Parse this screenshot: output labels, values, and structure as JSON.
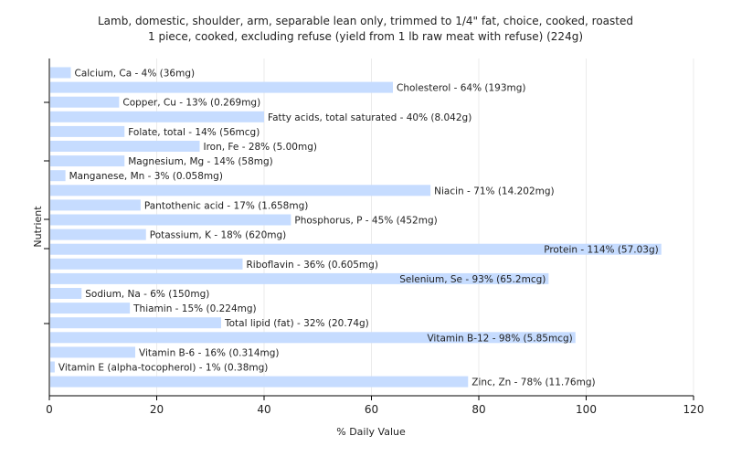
{
  "chart_data": {
    "type": "bar",
    "orientation": "horizontal",
    "title": "Lamb, domestic, shoulder, arm, separable lean only, trimmed to 1/4\" fat, choice, cooked, roasted",
    "subtitle": "1 piece, cooked, excluding refuse (yield from 1 lb raw meat with refuse) (224g)",
    "xlabel": "% Daily Value",
    "ylabel": "Nutrient",
    "xlim": [
      0,
      120
    ],
    "xticks": [
      0,
      20,
      40,
      60,
      80,
      100,
      120
    ],
    "grid": true,
    "bar_color": "#c6dcff",
    "categories": [
      "Calcium, Ca",
      "Cholesterol",
      "Copper, Cu",
      "Fatty acids, total saturated",
      "Folate, total",
      "Iron, Fe",
      "Magnesium, Mg",
      "Manganese, Mn",
      "Niacin",
      "Pantothenic acid",
      "Phosphorus, P",
      "Potassium, K",
      "Protein",
      "Riboflavin",
      "Selenium, Se",
      "Sodium, Na",
      "Thiamin",
      "Total lipid (fat)",
      "Vitamin B-12",
      "Vitamin B-6",
      "Vitamin E (alpha-tocopherol)",
      "Zinc, Zn"
    ],
    "values": [
      4,
      64,
      13,
      40,
      14,
      28,
      14,
      3,
      71,
      17,
      45,
      18,
      114,
      36,
      93,
      6,
      15,
      32,
      98,
      16,
      1,
      78
    ],
    "labels": [
      "Calcium, Ca - 4% (36mg)",
      "Cholesterol - 64% (193mg)",
      "Copper, Cu - 13% (0.269mg)",
      "Fatty acids, total saturated - 40% (8.042g)",
      "Folate, total - 14% (56mcg)",
      "Iron, Fe - 28% (5.00mg)",
      "Magnesium, Mg - 14% (58mg)",
      "Manganese, Mn - 3% (0.058mg)",
      "Niacin - 71% (14.202mg)",
      "Pantothenic acid - 17% (1.658mg)",
      "Phosphorus, P - 45% (452mg)",
      "Potassium, K - 18% (620mg)",
      "Protein - 114% (57.03g)",
      "Riboflavin - 36% (0.605mg)",
      "Selenium, Se - 93% (65.2mcg)",
      "Sodium, Na - 6% (150mg)",
      "Thiamin - 15% (0.224mg)",
      "Total lipid (fat) - 32% (20.74g)",
      "Vitamin B-12 - 98% (5.85mcg)",
      "Vitamin B-6 - 16% (0.314mg)",
      "Vitamin E (alpha-tocopherol) - 1% (0.38mg)",
      "Zinc, Zn - 78% (11.76mg)"
    ]
  }
}
